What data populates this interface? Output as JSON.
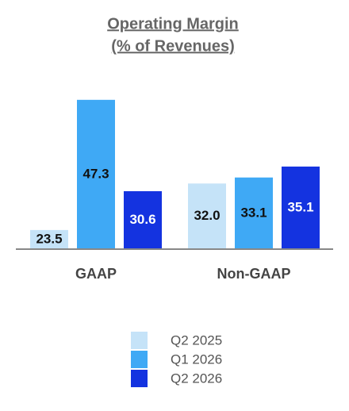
{
  "chart_data": {
    "type": "bar",
    "title": [
      "Operating Margin",
      "(% of Revenues)"
    ],
    "categories": [
      "GAAP",
      "Non-GAAP"
    ],
    "series": [
      {
        "name": "Q2 2025",
        "color": "#c5e3f8",
        "label_color": "#111111",
        "values": [
          23.5,
          32.0
        ],
        "value_labels": [
          "23.5",
          "32.0"
        ]
      },
      {
        "name": "Q1 2026",
        "color": "#3fa9f5",
        "label_color": "#111111",
        "values": [
          47.3,
          33.1
        ],
        "value_labels": [
          "47.3",
          "33.1"
        ]
      },
      {
        "name": "Q2 2026",
        "color": "#1433e0",
        "label_color": "#ffffff",
        "values": [
          30.6,
          35.1
        ],
        "value_labels": [
          "30.6",
          "35.1"
        ]
      }
    ],
    "ylim": [
      20,
      48
    ]
  }
}
